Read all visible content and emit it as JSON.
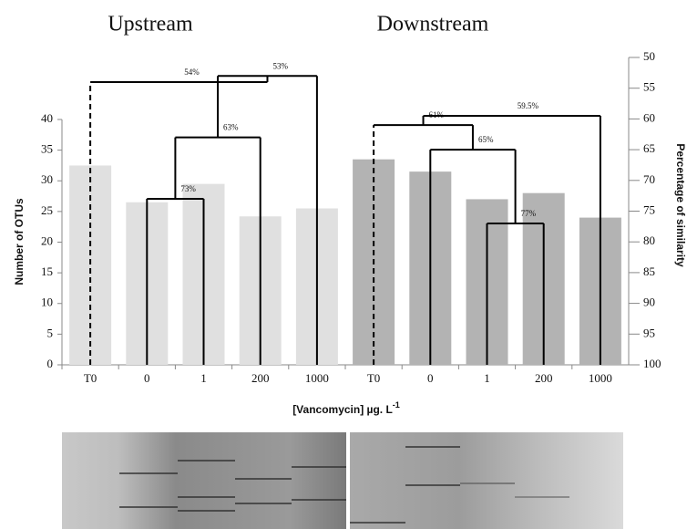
{
  "chart_data": {
    "type": "bar",
    "groups": [
      "Upstream",
      "Downstream"
    ],
    "categories": [
      "T0",
      "0",
      "1",
      "200",
      "1000",
      "T0",
      "0",
      "1",
      "200",
      "1000"
    ],
    "values": [
      32.5,
      26.5,
      29.5,
      24.2,
      25.5,
      33.5,
      31.5,
      27,
      28,
      24
    ],
    "colors": [
      "#e0e0e0",
      "#e0e0e0",
      "#e0e0e0",
      "#e0e0e0",
      "#e0e0e0",
      "#b3b3b3",
      "#b3b3b3",
      "#b3b3b3",
      "#b3b3b3",
      "#b3b3b3"
    ],
    "y_label": "Number of OTUs",
    "y2_label": "Percentage of similarity",
    "x_label": "[Vancomycin] µg. L",
    "x_label_superscript": "-1",
    "ylim": [
      0,
      40
    ],
    "yticks": [
      0,
      5,
      10,
      15,
      20,
      25,
      30,
      35,
      40
    ],
    "y2lim": [
      100,
      50
    ],
    "y2ticks": [
      50,
      55,
      60,
      65,
      70,
      75,
      80,
      85,
      90,
      95,
      100
    ],
    "dendrogram": {
      "axis": "y2",
      "dashed_leaves": [
        0,
        5
      ],
      "nodes": [
        {
          "value": 73,
          "label": "73%",
          "children": [
            {
              "leaf": 1
            },
            {
              "leaf": 2
            }
          ]
        },
        {
          "value": 63,
          "label": "63%",
          "children": [
            {
              "node": 0
            },
            {
              "leaf": 3
            }
          ]
        },
        {
          "value": 53,
          "label": "53%",
          "children": [
            {
              "node": 1
            },
            {
              "leaf": 4
            }
          ]
        },
        {
          "value": 54,
          "label": "54%",
          "children": [
            {
              "leaf": 0
            },
            {
              "node": 2
            }
          ]
        },
        {
          "value": 77,
          "label": "77%",
          "children": [
            {
              "leaf": 7
            },
            {
              "leaf": 8
            }
          ]
        },
        {
          "value": 65,
          "label": "65%",
          "children": [
            {
              "leaf": 6
            },
            {
              "node": 4
            }
          ]
        },
        {
          "value": 61,
          "label": "61%",
          "children": [
            {
              "leaf": 5
            },
            {
              "node": 5
            }
          ]
        },
        {
          "value": 59.5,
          "label": "59.5%",
          "children": [
            {
              "node": 6
            },
            {
              "leaf": 9
            }
          ]
        }
      ]
    }
  }
}
